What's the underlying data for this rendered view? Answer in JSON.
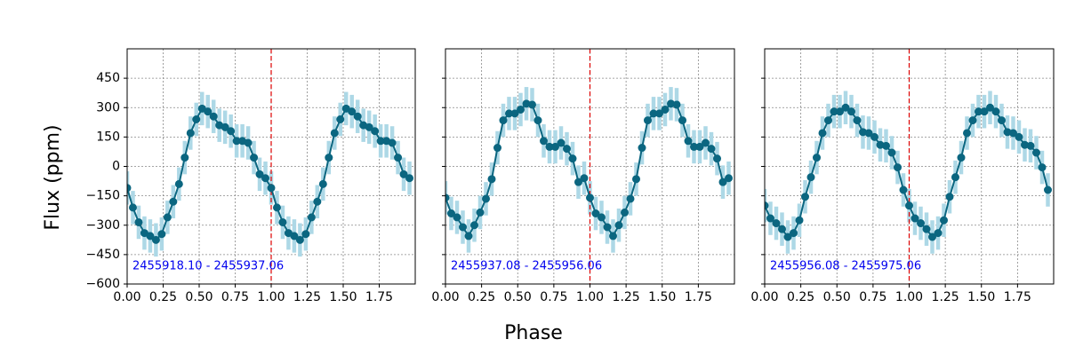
{
  "chart_data": [
    {
      "type": "errorbar-line",
      "ylabel": "Flux (ppm)",
      "annotation": "2455918.10 - 2455937.06",
      "x": [
        0,
        0.04,
        0.08,
        0.12,
        0.16,
        0.2,
        0.24,
        0.28,
        0.32,
        0.36,
        0.4,
        0.44,
        0.48,
        0.52,
        0.56,
        0.6,
        0.64,
        0.68,
        0.72,
        0.76,
        0.8,
        0.84,
        0.88,
        0.92,
        0.96,
        1,
        1.04,
        1.08,
        1.12,
        1.16,
        1.2,
        1.24,
        1.28,
        1.32,
        1.36,
        1.4,
        1.44,
        1.48,
        1.52,
        1.56,
        1.6,
        1.64,
        1.68,
        1.72,
        1.76,
        1.8,
        1.84,
        1.88,
        1.92,
        1.96
      ],
      "values": [
        -110,
        -210,
        -285,
        -340,
        -355,
        -375,
        -345,
        -260,
        -180,
        -90,
        45,
        170,
        240,
        295,
        280,
        255,
        210,
        200,
        180,
        130,
        130,
        120,
        45,
        -40,
        -60,
        -110,
        -210,
        -285,
        -340,
        -355,
        -375,
        -345,
        -260,
        -180,
        -90,
        45,
        170,
        240,
        295,
        280,
        255,
        210,
        200,
        180,
        130,
        130,
        120,
        45,
        -40,
        -60
      ],
      "error": 85,
      "color": "#0b6680",
      "error_color": "#add8e6",
      "vline": 1,
      "vline_color": "#e00000",
      "xlim": [
        0,
        2
      ],
      "ylim": [
        -600,
        600
      ],
      "xticks": [
        {
          "value": 0,
          "label": "0.00"
        },
        {
          "value": 0.25,
          "label": "0.25"
        },
        {
          "value": 0.5,
          "label": "0.50"
        },
        {
          "value": 0.75,
          "label": "0.75"
        },
        {
          "value": 1,
          "label": "1.00"
        },
        {
          "value": 1.25,
          "label": "1.25"
        },
        {
          "value": 1.5,
          "label": "1.50"
        },
        {
          "value": 1.75,
          "label": "1.75"
        }
      ],
      "yticks": [
        {
          "value": -600,
          "label": "−600"
        },
        {
          "value": -450,
          "label": "−450"
        },
        {
          "value": -300,
          "label": "−300"
        },
        {
          "value": -150,
          "label": "−150"
        },
        0,
        150,
        300,
        450
      ],
      "grid": true
    },
    {
      "type": "errorbar-line",
      "xlabel": "Phase",
      "annotation": "2455937.08 - 2455956.06",
      "x": [
        0,
        0.04,
        0.08,
        0.12,
        0.16,
        0.2,
        0.24,
        0.28,
        0.32,
        0.36,
        0.4,
        0.44,
        0.48,
        0.52,
        0.56,
        0.6,
        0.64,
        0.68,
        0.72,
        0.76,
        0.8,
        0.84,
        0.88,
        0.92,
        0.96,
        1,
        1.04,
        1.08,
        1.12,
        1.16,
        1.2,
        1.24,
        1.28,
        1.32,
        1.36,
        1.4,
        1.44,
        1.48,
        1.52,
        1.56,
        1.6,
        1.64,
        1.68,
        1.72,
        1.76,
        1.8,
        1.84,
        1.88,
        1.92,
        1.96
      ],
      "values": [
        -160,
        -240,
        -260,
        -310,
        -355,
        -300,
        -235,
        -165,
        -65,
        95,
        235,
        270,
        270,
        290,
        320,
        315,
        235,
        130,
        100,
        100,
        120,
        90,
        40,
        -80,
        -60,
        -160,
        -240,
        -260,
        -310,
        -355,
        -300,
        -235,
        -165,
        -65,
        95,
        235,
        270,
        270,
        290,
        320,
        315,
        235,
        130,
        100,
        100,
        120,
        90,
        40,
        -80,
        -60
      ],
      "error": 85,
      "color": "#0b6680",
      "error_color": "#add8e6",
      "vline": 1,
      "vline_color": "#e00000",
      "xlim": [
        0,
        2
      ],
      "ylim": [
        -600,
        600
      ],
      "xticks": [
        {
          "value": 0,
          "label": "0.00"
        },
        {
          "value": 0.25,
          "label": "0.25"
        },
        {
          "value": 0.5,
          "label": "0.50"
        },
        {
          "value": 0.75,
          "label": "0.75"
        },
        {
          "value": 1,
          "label": "1.00"
        },
        {
          "value": 1.25,
          "label": "1.25"
        },
        {
          "value": 1.5,
          "label": "1.50"
        },
        {
          "value": 1.75,
          "label": "1.75"
        }
      ],
      "yticks": [
        -600,
        -450,
        -300,
        -150,
        0,
        150,
        300,
        450
      ],
      "grid": true
    },
    {
      "type": "errorbar-line",
      "annotation": "2455956.08 - 2455975.06",
      "x": [
        0,
        0.04,
        0.08,
        0.12,
        0.16,
        0.2,
        0.24,
        0.28,
        0.32,
        0.36,
        0.4,
        0.44,
        0.48,
        0.52,
        0.56,
        0.6,
        0.64,
        0.68,
        0.72,
        0.76,
        0.8,
        0.84,
        0.88,
        0.92,
        0.96,
        1,
        1.04,
        1.08,
        1.12,
        1.16,
        1.2,
        1.24,
        1.28,
        1.32,
        1.36,
        1.4,
        1.44,
        1.48,
        1.52,
        1.56,
        1.6,
        1.64,
        1.68,
        1.72,
        1.76,
        1.8,
        1.84,
        1.88,
        1.92,
        1.96
      ],
      "values": [
        -200,
        -265,
        -290,
        -320,
        -360,
        -340,
        -275,
        -155,
        -55,
        45,
        170,
        235,
        280,
        280,
        300,
        280,
        235,
        175,
        170,
        150,
        110,
        105,
        70,
        -5,
        -120,
        -200,
        -265,
        -290,
        -320,
        -360,
        -340,
        -275,
        -155,
        -55,
        45,
        170,
        235,
        280,
        280,
        300,
        280,
        235,
        175,
        170,
        150,
        110,
        105,
        70,
        -5,
        -120
      ],
      "error": 85,
      "color": "#0b6680",
      "error_color": "#add8e6",
      "vline": 1,
      "vline_color": "#e00000",
      "xlim": [
        0,
        2
      ],
      "ylim": [
        -600,
        600
      ],
      "xticks": [
        {
          "value": 0,
          "label": "0.00"
        },
        {
          "value": 0.25,
          "label": "0.25"
        },
        {
          "value": 0.5,
          "label": "0.50"
        },
        {
          "value": 0.75,
          "label": "0.75"
        },
        {
          "value": 1,
          "label": "1.00"
        },
        {
          "value": 1.25,
          "label": "1.25"
        },
        {
          "value": 1.5,
          "label": "1.50"
        },
        {
          "value": 1.75,
          "label": "1.75"
        }
      ],
      "yticks": [
        -600,
        -450,
        -300,
        -150,
        0,
        150,
        300,
        450
      ],
      "grid": true
    }
  ]
}
